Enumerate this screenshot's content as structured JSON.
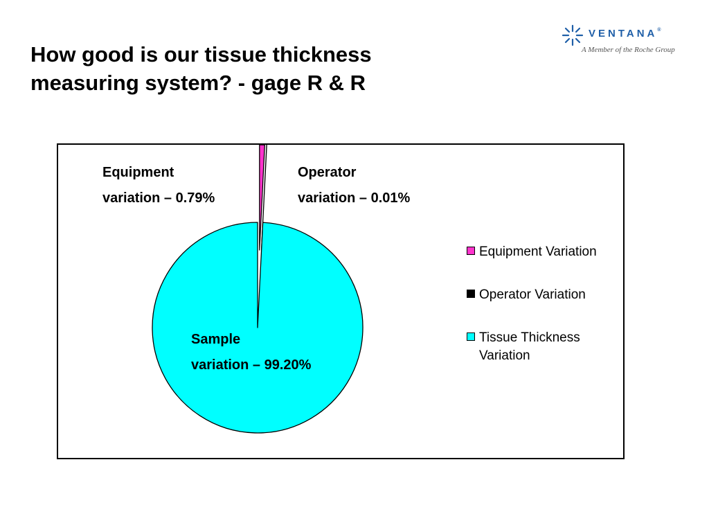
{
  "slide": {
    "title_line1": "How good is our tissue thickness",
    "title_line2": "measuring system? - gage R & R"
  },
  "logo": {
    "name": "VENTANA",
    "registered": "®",
    "tagline": "A Member of the Roche Group",
    "color": "#1f5fa8"
  },
  "chart_data": {
    "type": "pie",
    "title": "",
    "categories": [
      "Equipment Variation",
      "Operator Variation",
      "Tissue Thickness Variation"
    ],
    "values": [
      0.79,
      0.01,
      99.2
    ],
    "colors": [
      "#ff33cc",
      "#000000",
      "#00ffff"
    ],
    "legend_position": "right",
    "annotations": [
      {
        "line1": "Equipment",
        "line2": "variation – 0.79%"
      },
      {
        "line1": "Operator",
        "line2": "variation – 0.01%"
      },
      {
        "line1": "Sample",
        "line2": "variation – 99.20%"
      }
    ]
  }
}
